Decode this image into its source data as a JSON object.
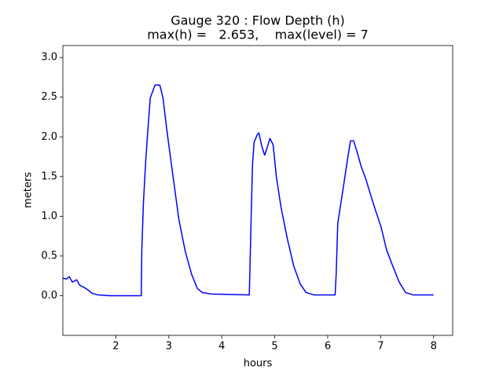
{
  "chart_data": {
    "type": "line",
    "title": [
      "Gauge 320 : Flow Depth (h)",
      "max(h) =   2.653,    max(level) = 7"
    ],
    "xlabel": "hours",
    "ylabel": "meters",
    "x": [
      1.0,
      1.07,
      1.12,
      1.18,
      1.26,
      1.32,
      1.41,
      1.48,
      1.55,
      1.66,
      1.88,
      2.48,
      2.49,
      2.52,
      2.56,
      2.59,
      2.65,
      2.74,
      2.83,
      2.89,
      2.97,
      3.07,
      3.19,
      3.31,
      3.43,
      3.54,
      3.63,
      3.81,
      4.52,
      4.55,
      4.58,
      4.61,
      4.67,
      4.7,
      4.76,
      4.81,
      4.85,
      4.91,
      4.97,
      5.03,
      5.12,
      5.24,
      5.36,
      5.48,
      5.59,
      5.74,
      6.14,
      6.16,
      6.19,
      6.28,
      6.37,
      6.43,
      6.49,
      6.56,
      6.63,
      6.72,
      6.81,
      6.9,
      7.01,
      7.11,
      7.23,
      7.35,
      7.47,
      7.61,
      8.0
    ],
    "series": [
      {
        "name": "h",
        "color": "#0000ff",
        "values": [
          0.22,
          0.21,
          0.24,
          0.17,
          0.2,
          0.13,
          0.1,
          0.07,
          0.03,
          0.01,
          0.0,
          0.0,
          0.56,
          1.16,
          1.65,
          1.95,
          2.49,
          2.653,
          2.653,
          2.49,
          2.05,
          1.55,
          0.96,
          0.56,
          0.27,
          0.09,
          0.04,
          0.02,
          0.01,
          0.86,
          1.65,
          1.93,
          2.03,
          2.05,
          1.87,
          1.77,
          1.85,
          1.98,
          1.9,
          1.5,
          1.11,
          0.71,
          0.37,
          0.15,
          0.04,
          0.01,
          0.01,
          0.27,
          0.91,
          1.3,
          1.7,
          1.95,
          1.95,
          1.8,
          1.63,
          1.47,
          1.27,
          1.08,
          0.86,
          0.58,
          0.37,
          0.17,
          0.04,
          0.01,
          0.01
        ]
      }
    ],
    "xlim": [
      1.0,
      8.36
    ],
    "xticks": [
      2,
      3,
      4,
      5,
      6,
      7,
      8
    ],
    "ylim": [
      -0.5,
      3.15
    ],
    "yticks": [
      {
        "value": 0,
        "label": "0.0"
      },
      0.5,
      {
        "value": 1,
        "label": "1.0"
      },
      1.5,
      {
        "value": 2,
        "label": "2.0"
      },
      2.5,
      {
        "value": 3,
        "label": "3.0"
      }
    ],
    "grid": false
  }
}
